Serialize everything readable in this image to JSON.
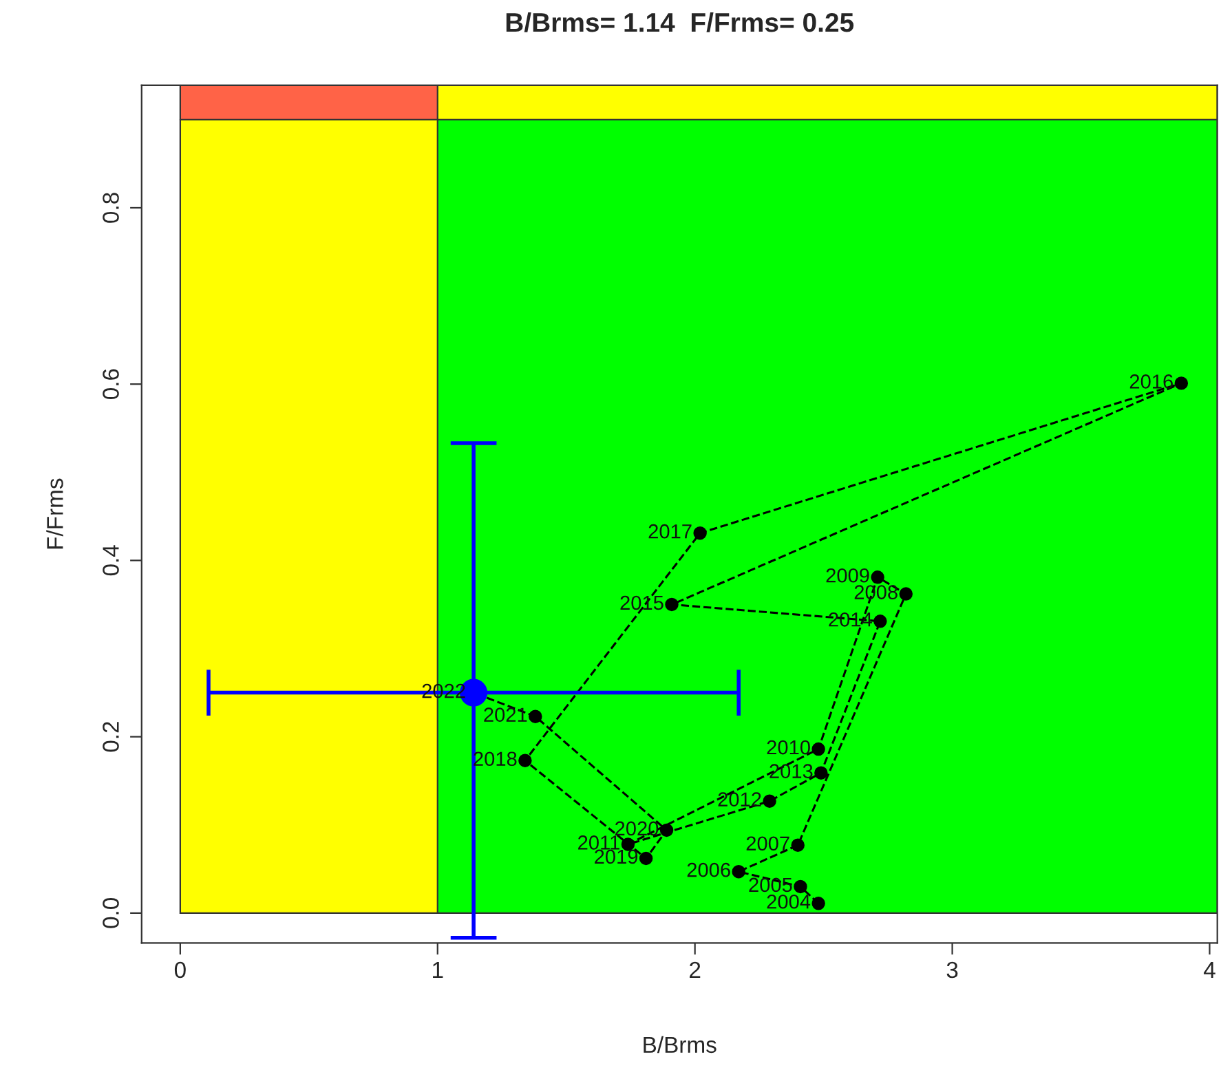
{
  "chart_data": {
    "type": "line",
    "title": "B/Brms= 1.14  F/Frms= 0.25",
    "xlabel": "B/Brms",
    "ylabel": "F/Frms",
    "xlim": [
      -0.15,
      4.03
    ],
    "ylim": [
      -0.034,
      0.939
    ],
    "xticks": [
      0,
      1,
      2,
      3,
      4
    ],
    "yticks": [
      {
        "value": 0,
        "label": "0.0"
      },
      {
        "value": 0.2,
        "label": "0.2"
      },
      {
        "value": 0.4,
        "label": "0.4"
      },
      {
        "value": 0.6,
        "label": "0.6"
      },
      {
        "value": 0.8,
        "label": "0.8"
      }
    ],
    "grid": false,
    "ref_lines": [
      {
        "axis": "x",
        "value": 1,
        "color": "#333333"
      },
      {
        "axis": "y",
        "value": 0.9,
        "color": "#333333"
      }
    ],
    "series": [
      {
        "color": "#000000",
        "marker": "circle",
        "line_style": "dashed",
        "x": [
          2.48,
          2.41,
          2.17,
          2.4,
          2.82,
          2.71,
          2.48,
          1.74,
          2.29,
          2.49,
          2.72,
          1.91,
          3.89,
          2.02,
          1.34,
          1.81,
          1.89,
          1.38,
          1.14
        ],
        "values": [
          0.011,
          0.03,
          0.047,
          0.077,
          0.362,
          0.381,
          0.186,
          0.078,
          0.127,
          0.159,
          0.331,
          0.35,
          0.601,
          0.431,
          0.173,
          0.062,
          0.094,
          0.223,
          0.25
        ]
      },
      {
        "type": "scatter",
        "color": "#0000ff",
        "marker": "circle",
        "x": [
          1.14
        ],
        "values": [
          0.25
        ],
        "errors": [
          [
            -0.028,
            0.533
          ]
        ],
        "xerrors": [
          [
            0.11,
            2.17
          ]
        ]
      }
    ],
    "annotations": [
      {
        "text": "2004",
        "x": 2.48,
        "y": 0.011
      },
      {
        "text": "2005",
        "x": 2.41,
        "y": 0.03
      },
      {
        "text": "2006",
        "x": 2.17,
        "y": 0.047
      },
      {
        "text": "2007",
        "x": 2.4,
        "y": 0.077
      },
      {
        "text": "2008",
        "x": 2.82,
        "y": 0.362
      },
      {
        "text": "2009",
        "x": 2.71,
        "y": 0.381
      },
      {
        "text": "2010",
        "x": 2.48,
        "y": 0.186
      },
      {
        "text": "2011",
        "x": 1.74,
        "y": 0.078
      },
      {
        "text": "2012",
        "x": 2.29,
        "y": 0.127
      },
      {
        "text": "2013",
        "x": 2.49,
        "y": 0.159
      },
      {
        "text": "2014",
        "x": 2.72,
        "y": 0.331
      },
      {
        "text": "2015",
        "x": 1.91,
        "y": 0.35
      },
      {
        "text": "2016",
        "x": 3.89,
        "y": 0.601
      },
      {
        "text": "2017",
        "x": 2.02,
        "y": 0.431
      },
      {
        "text": "2018",
        "x": 1.34,
        "y": 0.173
      },
      {
        "text": "2019",
        "x": 1.81,
        "y": 0.062
      },
      {
        "text": "2020",
        "x": 1.89,
        "y": 0.094
      },
      {
        "text": "2021",
        "x": 1.38,
        "y": 0.223
      },
      {
        "text": "2022",
        "x": 1.14,
        "y": 0.25
      }
    ]
  }
}
